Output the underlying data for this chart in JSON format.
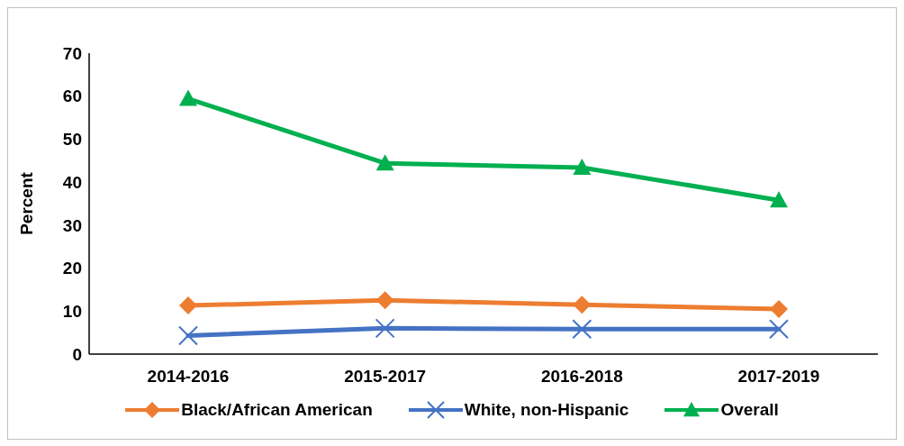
{
  "chart_data": {
    "type": "line",
    "ylabel": "Percent",
    "categories": [
      "2014-2016",
      "2015-2017",
      "2016-2018",
      "2017-2019"
    ],
    "series": [
      {
        "name": "Black/African American",
        "color": "#ed7d31",
        "marker": "diamond",
        "values": [
          11.3,
          12.5,
          11.5,
          10.5
        ]
      },
      {
        "name": "White, non-Hispanic",
        "color": "#4472c4",
        "marker": "cross",
        "values": [
          4.3,
          6.0,
          5.8,
          5.8
        ]
      },
      {
        "name": "Overall",
        "color": "#00b050",
        "marker": "triangle",
        "values": [
          59.4,
          44.4,
          43.4,
          35.8
        ]
      }
    ],
    "ylim": [
      0,
      70
    ],
    "yticks": [
      0,
      10,
      20,
      30,
      40,
      50,
      60,
      70
    ],
    "grid": false,
    "legend": "bottom"
  }
}
